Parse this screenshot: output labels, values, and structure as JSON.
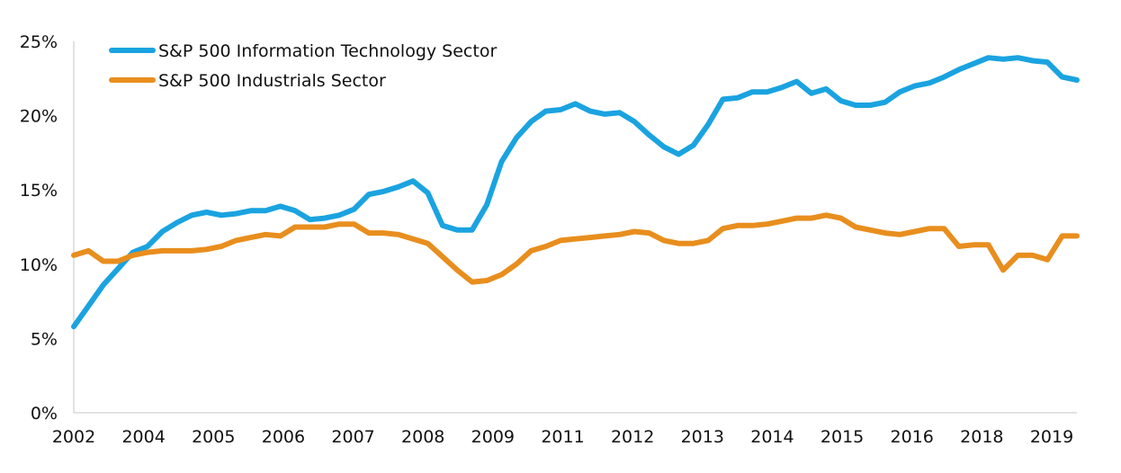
{
  "chart_data": {
    "type": "line",
    "title": "",
    "xlabel": "",
    "ylabel": "",
    "ylim": [
      0,
      25
    ],
    "yticks": [
      "0%",
      "5%",
      "10%",
      "15%",
      "20%",
      "25%"
    ],
    "xticks": [
      "2002",
      "2004",
      "2005",
      "2006",
      "2007",
      "2008",
      "2009",
      "2011",
      "2012",
      "2013",
      "2014",
      "2015",
      "2016",
      "2018",
      "2019"
    ],
    "grid": false,
    "legend_position": "top-left",
    "series": [
      {
        "name": "S&P 500 Information Technology  Sector",
        "color": "#1aa3e0",
        "values": [
          5.8,
          7.2,
          8.6,
          9.7,
          10.8,
          11.2,
          12.2,
          12.8,
          13.3,
          13.5,
          13.3,
          13.4,
          13.6,
          13.6,
          13.9,
          13.6,
          13.0,
          13.1,
          13.3,
          13.7,
          14.7,
          14.9,
          15.2,
          15.6,
          14.8,
          12.6,
          12.3,
          12.3,
          14.0,
          16.9,
          18.5,
          19.6,
          20.3,
          20.4,
          20.8,
          20.3,
          20.1,
          20.2,
          19.6,
          18.7,
          17.9,
          17.4,
          18.0,
          19.4,
          21.1,
          21.2,
          21.6,
          21.6,
          21.9,
          22.3,
          21.5,
          21.8,
          21.0,
          20.7,
          20.7,
          20.9,
          21.6,
          22.0,
          22.2,
          22.6,
          23.1,
          23.5,
          23.9,
          23.8,
          23.9,
          23.7,
          23.6,
          22.6,
          22.4
        ]
      },
      {
        "name": "S&P 500 Industrials Sector",
        "color": "#e88e1e",
        "values": [
          10.6,
          10.9,
          10.2,
          10.2,
          10.6,
          10.8,
          10.9,
          10.9,
          10.9,
          11.0,
          11.2,
          11.6,
          11.8,
          12.0,
          11.9,
          12.5,
          12.5,
          12.5,
          12.7,
          12.7,
          12.1,
          12.1,
          12.0,
          11.7,
          11.4,
          10.5,
          9.6,
          8.8,
          8.9,
          9.3,
          10.0,
          10.9,
          11.2,
          11.6,
          11.7,
          11.8,
          11.9,
          12.0,
          12.2,
          12.1,
          11.6,
          11.4,
          11.4,
          11.6,
          12.4,
          12.6,
          12.6,
          12.7,
          12.9,
          13.1,
          13.1,
          13.3,
          13.1,
          12.5,
          12.3,
          12.1,
          12.0,
          12.2,
          12.4,
          12.4,
          11.2,
          11.3,
          11.3,
          9.6,
          10.6,
          10.6,
          10.3,
          11.9,
          11.9
        ]
      }
    ]
  }
}
